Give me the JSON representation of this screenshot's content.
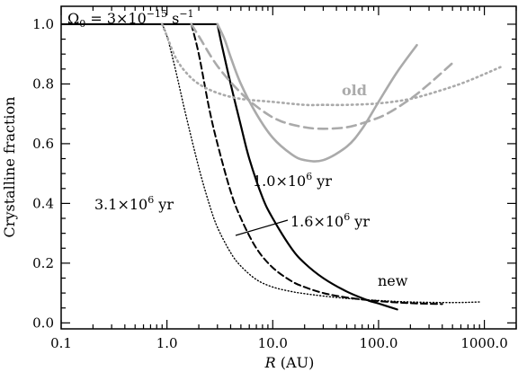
{
  "chart_data": {
    "type": "line",
    "xlabel": "R",
    "xlabel_unit": "(AU)",
    "ylabel": "Crystalline fraction",
    "x_scale": "log",
    "xlim": [
      0.1,
      2000
    ],
    "ylim": [
      -0.02,
      1.06
    ],
    "x_ticks": [
      {
        "value": 0.1,
        "label": "0.1"
      },
      {
        "value": 1,
        "label": "1.0"
      },
      {
        "value": 10,
        "label": "10.0"
      },
      {
        "value": 100,
        "label": "100.0"
      },
      {
        "value": 1000,
        "label": "1000.0"
      }
    ],
    "y_ticks": [
      {
        "value": 0.0,
        "label": "0.0"
      },
      {
        "value": 0.2,
        "label": "0.2"
      },
      {
        "value": 0.4,
        "label": "0.4"
      },
      {
        "value": 0.6,
        "label": "0.6"
      },
      {
        "value": 0.8,
        "label": "0.8"
      },
      {
        "value": 1.0,
        "label": "1.0"
      }
    ],
    "grid": false,
    "legend": "none",
    "series": [
      {
        "model": "new",
        "time_label": "3.1×10^6 yr",
        "style": "dotted",
        "color": "#000000",
        "width": 1.4,
        "x": [
          0.9,
          1.0,
          1.2,
          1.5,
          2.0,
          2.5,
          3.0,
          4.0,
          5.0,
          7.0,
          10,
          15,
          20,
          30,
          50,
          100,
          200,
          500,
          900
        ],
        "y": [
          1.0,
          0.96,
          0.85,
          0.7,
          0.52,
          0.4,
          0.32,
          0.235,
          0.19,
          0.145,
          0.12,
          0.105,
          0.098,
          0.09,
          0.082,
          0.075,
          0.07,
          0.068,
          0.07
        ]
      },
      {
        "model": "new",
        "time_label": "1.6×10^6 yr",
        "style": "dashed",
        "color": "#000000",
        "width": 2.0,
        "x": [
          1.7,
          2.0,
          2.5,
          3.0,
          4.0,
          5.0,
          7.0,
          10,
          15,
          20,
          30,
          50,
          100,
          200,
          400
        ],
        "y": [
          1.0,
          0.9,
          0.72,
          0.6,
          0.44,
          0.35,
          0.25,
          0.185,
          0.14,
          0.12,
          0.1,
          0.085,
          0.073,
          0.066,
          0.063
        ]
      },
      {
        "model": "new",
        "time_label": "1.0×10^6 yr",
        "style": "solid",
        "color": "#000000",
        "width": 2.2,
        "x": [
          0.1,
          3.0,
          3.3,
          4.0,
          5.0,
          6.0,
          8.0,
          10,
          15,
          20,
          30,
          50,
          80,
          100,
          150
        ],
        "y": [
          1.0,
          1.0,
          0.93,
          0.8,
          0.66,
          0.55,
          0.42,
          0.35,
          0.25,
          0.2,
          0.15,
          0.105,
          0.075,
          0.065,
          0.045
        ]
      },
      {
        "model": "old",
        "time_label": "3.1×10^6 yr",
        "style": "dotted",
        "color": "#aaaaaa",
        "width": 2.6,
        "x": [
          0.9,
          1.0,
          1.2,
          1.5,
          2.0,
          3.0,
          5.0,
          10,
          20,
          30,
          50,
          100,
          200,
          400,
          700,
          1500
        ],
        "y": [
          1.0,
          0.96,
          0.89,
          0.84,
          0.8,
          0.77,
          0.75,
          0.74,
          0.73,
          0.73,
          0.73,
          0.735,
          0.75,
          0.78,
          0.81,
          0.86
        ]
      },
      {
        "model": "old",
        "time_label": "1.6×10^6 yr",
        "style": "dashed",
        "color": "#aaaaaa",
        "width": 2.6,
        "x": [
          1.7,
          2.0,
          3.0,
          5.0,
          8.0,
          12,
          20,
          30,
          50,
          80,
          120,
          200,
          300,
          500
        ],
        "y": [
          1.0,
          0.96,
          0.86,
          0.77,
          0.71,
          0.675,
          0.655,
          0.65,
          0.655,
          0.675,
          0.7,
          0.75,
          0.8,
          0.87
        ]
      },
      {
        "model": "old",
        "time_label": "1.0×10^6 yr",
        "style": "solid",
        "color": "#aaaaaa",
        "width": 2.6,
        "x": [
          3.0,
          3.5,
          4.0,
          5.0,
          7.0,
          10,
          15,
          20,
          30,
          50,
          70,
          100,
          150,
          230
        ],
        "y": [
          1.0,
          0.95,
          0.89,
          0.8,
          0.7,
          0.62,
          0.565,
          0.545,
          0.545,
          0.59,
          0.65,
          0.74,
          0.84,
          0.93
        ]
      }
    ],
    "annotations": {
      "omega": {
        "symbol": "Ω",
        "sub": "0",
        "eq": " = 3×10",
        "exp": "−15",
        "unit": " s",
        "unit_exp": "−1"
      },
      "old": "old",
      "new": "new",
      "t1": {
        "mant": "1.0×10",
        "exp": "6",
        "unit": " yr"
      },
      "t16": {
        "mant": "1.6×10",
        "exp": "6",
        "unit": " yr"
      },
      "t31": {
        "mant": "3.1×10",
        "exp": "6",
        "unit": " yr"
      }
    }
  }
}
